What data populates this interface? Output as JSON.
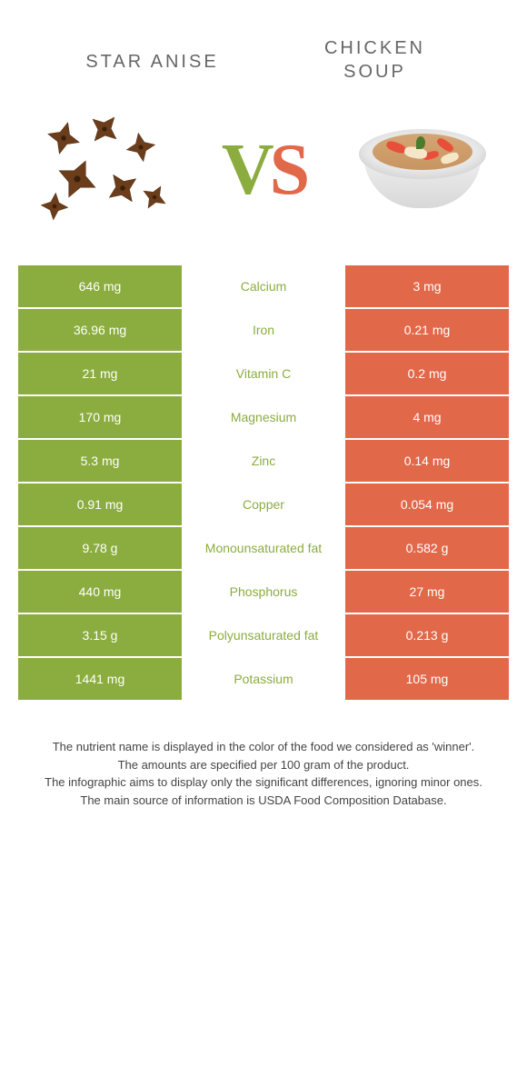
{
  "title_left": "Star anise",
  "title_right_line1": "Chicken",
  "title_right_line2": "soup",
  "vs_v": "V",
  "vs_s": "S",
  "colors": {
    "left": "#8bad3f",
    "right": "#e2684a",
    "mid_text": "#8bad3f",
    "title_text": "#666666"
  },
  "rows": [
    {
      "left": "646 mg",
      "label": "Calcium",
      "right": "3 mg"
    },
    {
      "left": "36.96 mg",
      "label": "Iron",
      "right": "0.21 mg"
    },
    {
      "left": "21 mg",
      "label": "Vitamin C",
      "right": "0.2 mg"
    },
    {
      "left": "170 mg",
      "label": "Magnesium",
      "right": "4 mg"
    },
    {
      "left": "5.3 mg",
      "label": "Zinc",
      "right": "0.14 mg"
    },
    {
      "left": "0.91 mg",
      "label": "Copper",
      "right": "0.054 mg"
    },
    {
      "left": "9.78 g",
      "label": "Monounsaturated fat",
      "right": "0.582 g"
    },
    {
      "left": "440 mg",
      "label": "Phosphorus",
      "right": "27 mg"
    },
    {
      "left": "3.15 g",
      "label": "Polyunsaturated fat",
      "right": "0.213 g"
    },
    {
      "left": "1441 mg",
      "label": "Potassium",
      "right": "105 mg"
    }
  ],
  "footer_lines": [
    "The nutrient name is displayed in the color of the food we considered as 'winner'.",
    "The amounts are specified per 100 gram of the product.",
    "The infographic aims to display only the significant differences, ignoring minor ones.",
    "The main source of information is USDA Food Composition Database."
  ]
}
